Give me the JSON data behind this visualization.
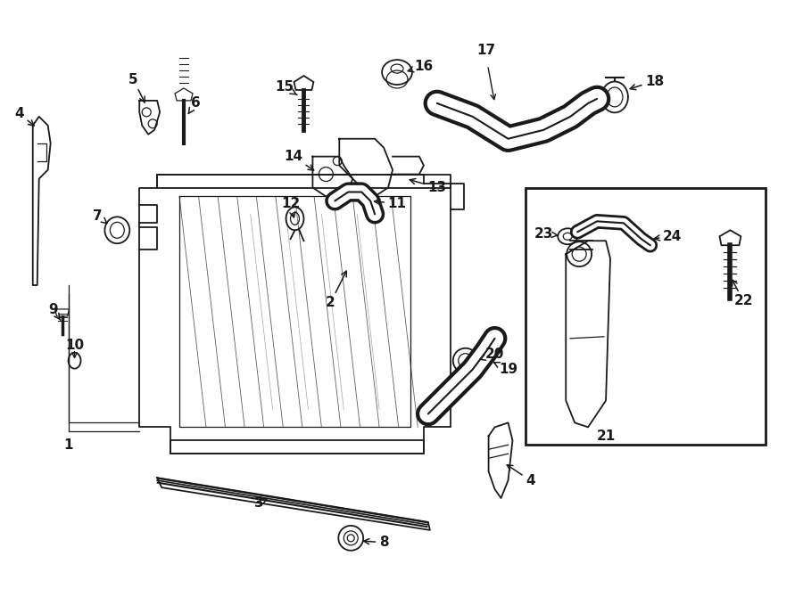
{
  "bg_color": "#ffffff",
  "line_color": "#1a1a1a",
  "fig_width": 9.0,
  "fig_height": 6.61,
  "dpi": 100,
  "lw": 1.3,
  "lw_thick": 2.2,
  "lw_thin": 0.9,
  "fs": 11,
  "fs_small": 9
}
